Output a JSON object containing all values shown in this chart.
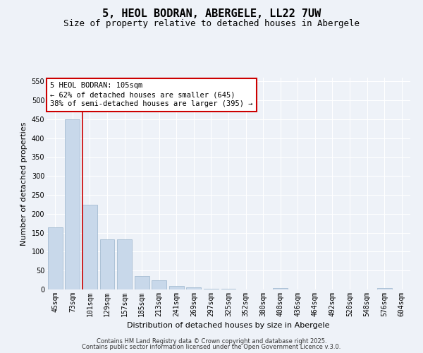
{
  "title": "5, HEOL BODRAN, ABERGELE, LL22 7UW",
  "subtitle": "Size of property relative to detached houses in Abergele",
  "xlabel": "Distribution of detached houses by size in Abergele",
  "ylabel": "Number of detached properties",
  "bar_labels": [
    "45sqm",
    "73sqm",
    "101sqm",
    "129sqm",
    "157sqm",
    "185sqm",
    "213sqm",
    "241sqm",
    "269sqm",
    "297sqm",
    "325sqm",
    "352sqm",
    "380sqm",
    "408sqm",
    "436sqm",
    "464sqm",
    "492sqm",
    "520sqm",
    "548sqm",
    "576sqm",
    "604sqm"
  ],
  "bar_values": [
    165,
    450,
    224,
    133,
    133,
    36,
    25,
    9,
    5,
    2,
    2,
    0,
    0,
    3,
    0,
    0,
    0,
    0,
    0,
    4,
    0
  ],
  "bar_color": "#c8d8ea",
  "bar_edgecolor": "#9ab4cc",
  "vline_x": 2,
  "vline_color": "#cc0000",
  "annotation_text": "5 HEOL BODRAN: 105sqm\n← 62% of detached houses are smaller (645)\n38% of semi-detached houses are larger (395) →",
  "annotation_box_facecolor": "#ffffff",
  "annotation_box_edgecolor": "#cc0000",
  "ylim": [
    0,
    560
  ],
  "yticks": [
    0,
    50,
    100,
    150,
    200,
    250,
    300,
    350,
    400,
    450,
    500,
    550
  ],
  "footer1": "Contains HM Land Registry data © Crown copyright and database right 2025.",
  "footer2": "Contains public sector information licensed under the Open Government Licence v.3.0.",
  "bg_color": "#eef2f8",
  "plot_bg_color": "#eef2f8",
  "grid_color": "#ffffff",
  "title_fontsize": 11,
  "subtitle_fontsize": 9,
  "ylabel_fontsize": 8,
  "xlabel_fontsize": 8,
  "tick_fontsize": 7,
  "annotation_fontsize": 7.5
}
